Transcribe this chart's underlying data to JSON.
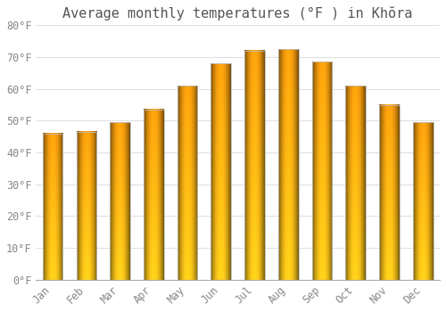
{
  "title": "Average monthly temperatures (°F ) in Khŏra",
  "months": [
    "Jan",
    "Feb",
    "Mar",
    "Apr",
    "May",
    "Jun",
    "Jul",
    "Aug",
    "Sep",
    "Oct",
    "Nov",
    "Dec"
  ],
  "values": [
    46.0,
    46.5,
    49.5,
    53.5,
    61.0,
    68.0,
    72.0,
    72.5,
    68.5,
    61.0,
    55.0,
    49.5
  ],
  "ylim": [
    0,
    80
  ],
  "ytick_step": 10,
  "background_color": "#ffffff",
  "grid_color": "#e0e0e0",
  "title_fontsize": 11,
  "tick_fontsize": 8.5,
  "bar_width": 0.6,
  "bar_color_left": "#d4780a",
  "bar_color_mid": "#ffb81c",
  "bar_color_right": "#d4780a",
  "bar_bottom_color": "#f5a623",
  "bar_bottom_bright": "#ffd040"
}
